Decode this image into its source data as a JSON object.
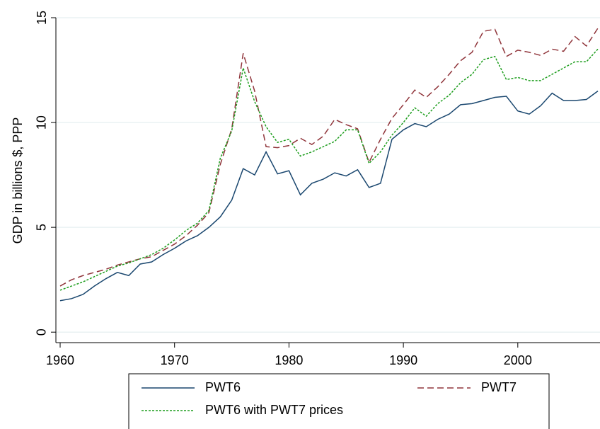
{
  "chart_data": {
    "type": "line",
    "y_label": "GDP in billions $, PPP",
    "x": [
      1960,
      1961,
      1962,
      1963,
      1964,
      1965,
      1966,
      1967,
      1968,
      1969,
      1970,
      1971,
      1972,
      1973,
      1974,
      1975,
      1976,
      1977,
      1978,
      1979,
      1980,
      1981,
      1982,
      1983,
      1984,
      1985,
      1986,
      1987,
      1988,
      1989,
      1990,
      1991,
      1992,
      1993,
      1994,
      1995,
      1996,
      1997,
      1998,
      1999,
      2000,
      2001,
      2002,
      2003,
      2004,
      2005,
      2006,
      2007
    ],
    "series": [
      {
        "name": "PWT6",
        "color": "#1a476f",
        "dash": "none",
        "values": [
          1.5,
          1.6,
          1.8,
          2.2,
          2.55,
          2.85,
          2.7,
          3.25,
          3.35,
          3.7,
          4.0,
          4.35,
          4.6,
          5.0,
          5.5,
          6.3,
          7.8,
          7.5,
          8.6,
          7.55,
          7.7,
          6.55,
          7.1,
          7.3,
          7.6,
          7.45,
          7.75,
          6.9,
          7.1,
          9.2,
          9.65,
          9.95,
          9.8,
          10.15,
          10.4,
          10.85,
          10.9,
          11.05,
          11.2,
          11.25,
          10.55,
          10.4,
          10.8,
          11.4,
          11.05,
          11.05,
          11.1,
          11.5
        ]
      },
      {
        "name": "PWT7",
        "color": "#90353b",
        "dash": "9 5",
        "values": [
          2.2,
          2.5,
          2.7,
          2.85,
          3.0,
          3.2,
          3.35,
          3.5,
          3.6,
          3.9,
          4.2,
          4.6,
          5.1,
          5.7,
          8.0,
          9.7,
          13.3,
          11.5,
          8.85,
          8.8,
          8.9,
          9.25,
          8.95,
          9.35,
          10.15,
          9.9,
          9.7,
          8.1,
          9.2,
          10.2,
          10.85,
          11.55,
          11.2,
          11.7,
          12.3,
          12.95,
          13.35,
          14.35,
          14.45,
          13.15,
          13.45,
          13.35,
          13.2,
          13.5,
          13.4,
          14.1,
          13.65,
          14.5
        ]
      },
      {
        "name": "PWT6 with PWT7 prices",
        "color": "#1e9e1e",
        "dash": "3 2",
        "values": [
          2.0,
          2.2,
          2.4,
          2.65,
          2.9,
          3.15,
          3.3,
          3.5,
          3.7,
          4.0,
          4.4,
          4.85,
          5.2,
          5.8,
          8.3,
          9.6,
          12.6,
          11.0,
          9.8,
          9.05,
          9.2,
          8.4,
          8.6,
          8.85,
          9.1,
          9.65,
          9.65,
          8.05,
          8.6,
          9.4,
          10.0,
          10.7,
          10.3,
          10.9,
          11.3,
          11.9,
          12.3,
          13.0,
          13.15,
          12.05,
          12.15,
          12.0,
          12.0,
          12.3,
          12.6,
          12.9,
          12.9,
          13.5
        ]
      }
    ],
    "xlim": [
      1960,
      2007
    ],
    "xticks": [
      1960,
      1970,
      1980,
      1990,
      2000
    ],
    "ylim": [
      -0.5,
      15
    ],
    "yticks": [
      0,
      5,
      10,
      15
    ],
    "grid": true,
    "legend": "bottom"
  }
}
